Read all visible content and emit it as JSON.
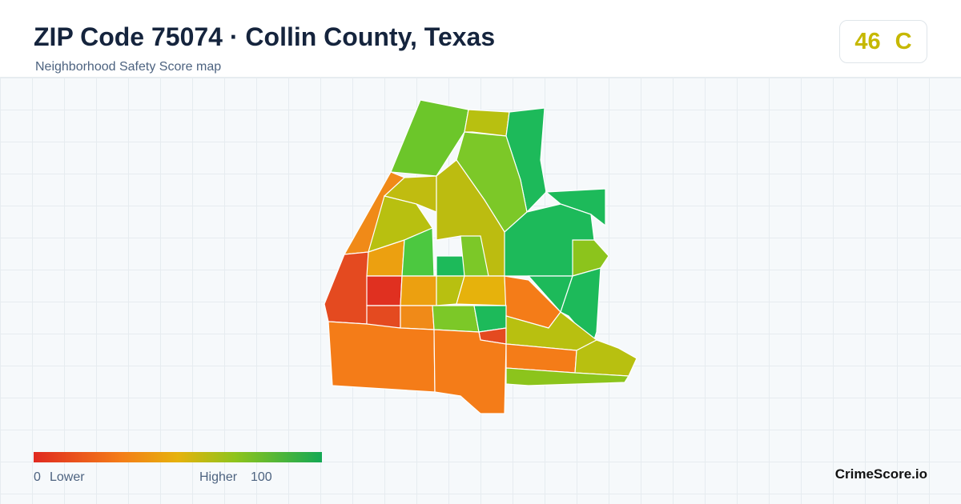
{
  "header": {
    "title": "ZIP Code 75074 · Collin County, Texas",
    "subtitle": "Neighborhood Safety Score map"
  },
  "score": {
    "value": "46",
    "grade": "C"
  },
  "legend": {
    "min": "0",
    "low_label": "Lower",
    "high_label": "Higher",
    "max": "100"
  },
  "brand": "CrimeScore.io"
}
